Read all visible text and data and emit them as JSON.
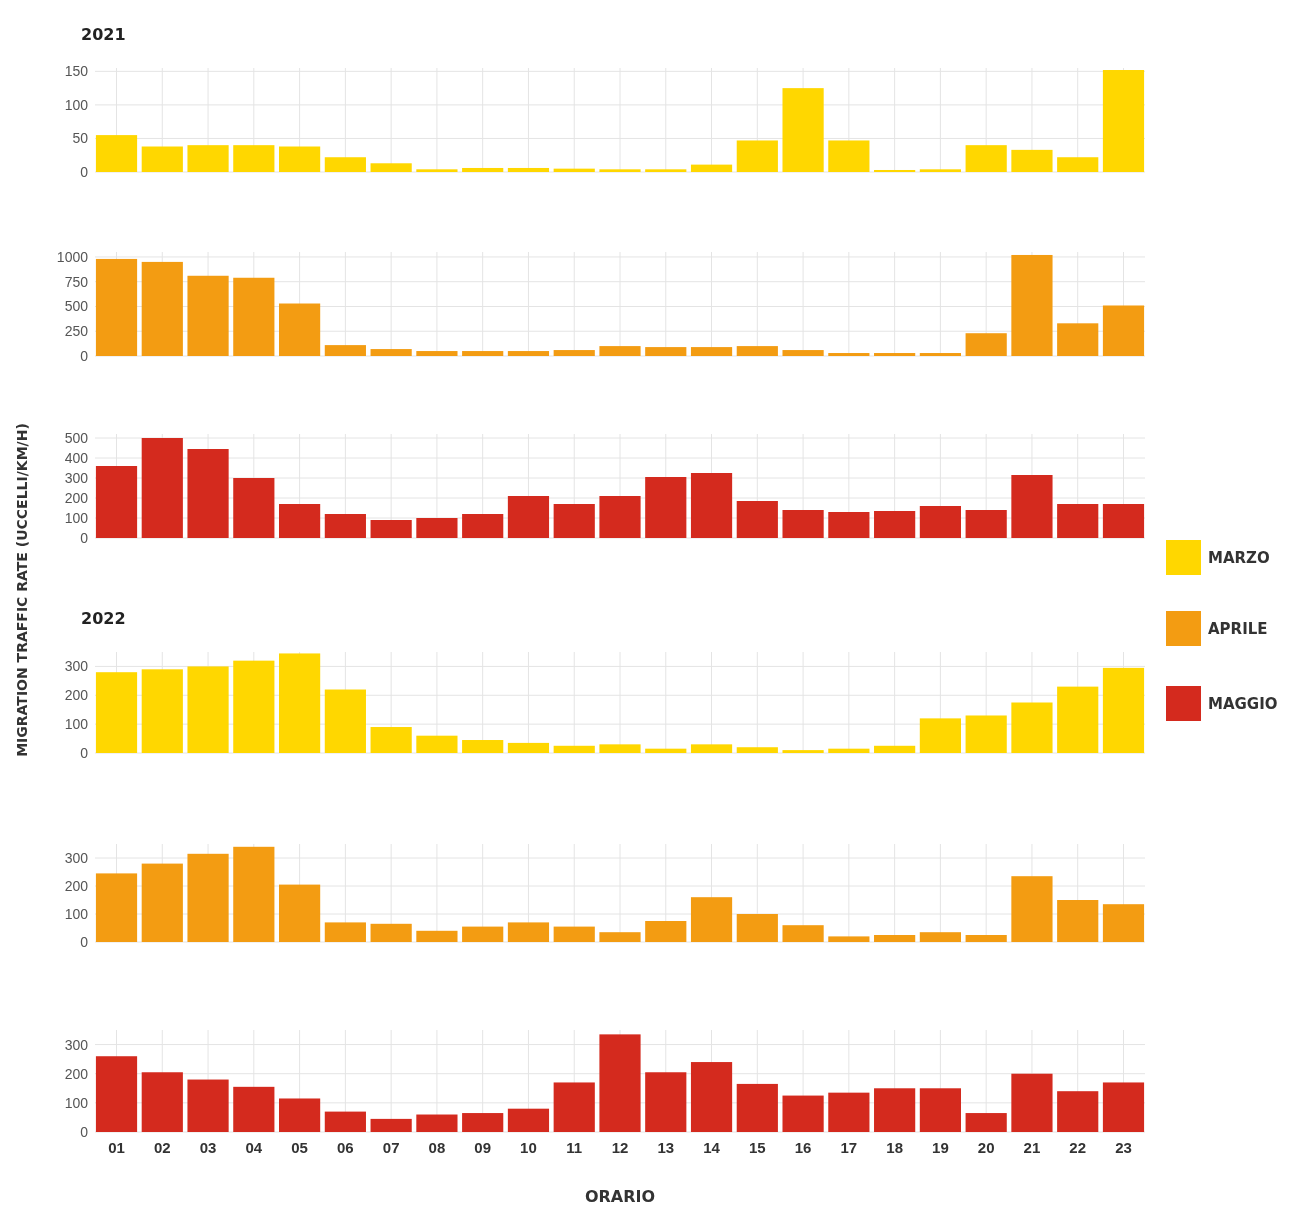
{
  "chart_data": [
    {
      "type": "bar",
      "title": "2021",
      "categories": [
        "01",
        "02",
        "03",
        "04",
        "05",
        "06",
        "07",
        "08",
        "09",
        "10",
        "11",
        "12",
        "13",
        "14",
        "15",
        "16",
        "17",
        "18",
        "19",
        "20",
        "21",
        "22",
        "23"
      ],
      "series": [
        {
          "name": "MARZO",
          "color": "#ffd700",
          "values": [
            55,
            38,
            40,
            40,
            38,
            22,
            13,
            4,
            6,
            6,
            5,
            4,
            4,
            11,
            47,
            125,
            47,
            3,
            4,
            40,
            33,
            22,
            152
          ]
        }
      ],
      "ylim": [
        0,
        155
      ],
      "yticks": [
        0,
        50,
        100,
        150
      ],
      "grid": true,
      "legend": "right",
      "tick_labels": "y"
    },
    {
      "type": "bar",
      "categories": [
        "01",
        "02",
        "03",
        "04",
        "05",
        "06",
        "07",
        "08",
        "09",
        "10",
        "11",
        "12",
        "13",
        "14",
        "15",
        "16",
        "17",
        "18",
        "19",
        "20",
        "21",
        "22",
        "23"
      ],
      "series": [
        {
          "name": "APRILE",
          "color": "#f39c12",
          "values": [
            980,
            950,
            810,
            790,
            530,
            110,
            70,
            50,
            50,
            50,
            60,
            100,
            90,
            90,
            100,
            60,
            30,
            30,
            30,
            230,
            1020,
            330,
            510
          ]
        }
      ],
      "ylim": [
        0,
        1050
      ],
      "yticks": [
        0,
        250,
        500,
        750,
        1000
      ],
      "grid": true,
      "legend": "right",
      "tick_labels": "y"
    },
    {
      "type": "bar",
      "ylabel": "MIGRATION TRAFFIC RATE (UCCELLI/KM/H)",
      "categories": [
        "01",
        "02",
        "03",
        "04",
        "05",
        "06",
        "07",
        "08",
        "09",
        "10",
        "11",
        "12",
        "13",
        "14",
        "15",
        "16",
        "17",
        "18",
        "19",
        "20",
        "21",
        "22",
        "23"
      ],
      "series": [
        {
          "name": "MAGGIO",
          "color": "#d42a1e",
          "values": [
            360,
            500,
            445,
            300,
            170,
            120,
            90,
            100,
            120,
            210,
            170,
            210,
            305,
            325,
            185,
            140,
            130,
            135,
            160,
            140,
            315,
            170,
            170
          ]
        }
      ],
      "ylim": [
        0,
        520
      ],
      "yticks": [
        0,
        100,
        200,
        300,
        400,
        500
      ],
      "grid": true,
      "legend": "right",
      "tick_labels": "y"
    },
    {
      "type": "bar",
      "title": "2022",
      "categories": [
        "01",
        "02",
        "03",
        "04",
        "05",
        "06",
        "07",
        "08",
        "09",
        "10",
        "11",
        "12",
        "13",
        "14",
        "15",
        "16",
        "17",
        "18",
        "19",
        "20",
        "21",
        "22",
        "23"
      ],
      "series": [
        {
          "color": "#ffd700",
          "values": [
            280,
            290,
            300,
            320,
            345,
            220,
            90,
            60,
            45,
            35,
            25,
            30,
            15,
            30,
            20,
            10,
            15,
            25,
            120,
            130,
            175,
            230,
            295
          ]
        }
      ],
      "ylim": [
        0,
        350
      ],
      "yticks": [
        0,
        100,
        200,
        300
      ],
      "grid": true,
      "tick_labels": "y"
    },
    {
      "type": "bar",
      "categories": [
        "01",
        "02",
        "03",
        "04",
        "05",
        "06",
        "07",
        "08",
        "09",
        "10",
        "11",
        "12",
        "13",
        "14",
        "15",
        "16",
        "17",
        "18",
        "19",
        "20",
        "21",
        "22",
        "23"
      ],
      "series": [
        {
          "color": "#f39c12",
          "values": [
            245,
            280,
            315,
            340,
            205,
            70,
            65,
            40,
            55,
            70,
            55,
            35,
            75,
            160,
            100,
            60,
            20,
            25,
            35,
            25,
            235,
            150,
            135
          ]
        }
      ],
      "ylim": [
        0,
        350
      ],
      "yticks": [
        0,
        100,
        200,
        300
      ],
      "grid": true,
      "tick_labels": "y"
    },
    {
      "type": "bar",
      "xlabel": "ORARIO",
      "categories": [
        "01",
        "02",
        "03",
        "04",
        "05",
        "06",
        "07",
        "08",
        "09",
        "10",
        "11",
        "12",
        "13",
        "14",
        "15",
        "16",
        "17",
        "18",
        "19",
        "20",
        "21",
        "22",
        "23"
      ],
      "series": [
        {
          "color": "#d42a1e",
          "values": [
            260,
            205,
            180,
            155,
            115,
            70,
            45,
            60,
            65,
            80,
            170,
            335,
            205,
            240,
            165,
            125,
            135,
            150,
            150,
            65,
            200,
            140,
            170
          ]
        }
      ],
      "ylim": [
        0,
        350
      ],
      "yticks": [
        0,
        100,
        200,
        300
      ],
      "grid": true
    }
  ]
}
